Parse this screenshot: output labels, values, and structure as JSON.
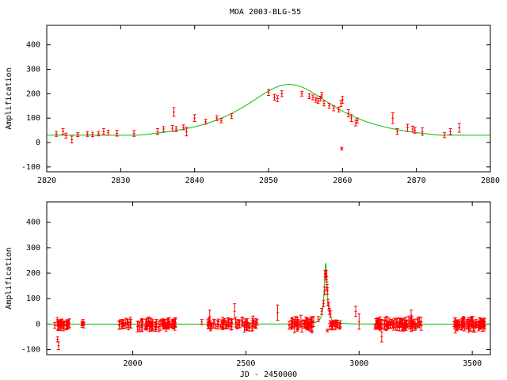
{
  "title": "MOA 2003-BLG-55",
  "chart_data": [
    {
      "type": "scatter",
      "ylabel": "Amplification",
      "xlabel": "",
      "xlim": [
        2820,
        2880
      ],
      "ylim": [
        -120,
        480
      ],
      "xticks": [
        2820,
        2830,
        2840,
        2850,
        2860,
        2870,
        2880
      ],
      "yticks": [
        -100,
        0,
        100,
        200,
        300,
        400
      ],
      "colors": {
        "data": "#ff0000",
        "model": "#00c000"
      },
      "model": {
        "t0": 2852.8,
        "baseline": 0,
        "peak": 238,
        "tE": 7.8,
        "floor": 30
      },
      "points": [
        [
          2821.3,
          35,
          10
        ],
        [
          2822.2,
          45,
          12
        ],
        [
          2822.6,
          28,
          10
        ],
        [
          2823.4,
          12,
          14
        ],
        [
          2824.2,
          32,
          8
        ],
        [
          2825.5,
          35,
          10
        ],
        [
          2826.2,
          33,
          9
        ],
        [
          2827.0,
          36,
          9
        ],
        [
          2827.7,
          45,
          12
        ],
        [
          2828.3,
          40,
          10
        ],
        [
          2829.5,
          38,
          12
        ],
        [
          2831.8,
          37,
          12
        ],
        [
          2835.0,
          45,
          12
        ],
        [
          2835.8,
          55,
          10
        ],
        [
          2837.0,
          58,
          12
        ],
        [
          2837.2,
          125,
          18
        ],
        [
          2837.5,
          55,
          10
        ],
        [
          2838.5,
          62,
          10
        ],
        [
          2838.9,
          45,
          18
        ],
        [
          2840.0,
          100,
          14
        ],
        [
          2841.5,
          85,
          10
        ],
        [
          2843.0,
          100,
          10
        ],
        [
          2843.6,
          90,
          9
        ],
        [
          2845.0,
          108,
          10
        ],
        [
          2850.0,
          205,
          12
        ],
        [
          2850.8,
          185,
          12
        ],
        [
          2851.2,
          180,
          12
        ],
        [
          2851.8,
          200,
          12
        ],
        [
          2854.5,
          200,
          10
        ],
        [
          2855.5,
          190,
          10
        ],
        [
          2856.0,
          185,
          10
        ],
        [
          2856.4,
          175,
          10
        ],
        [
          2856.7,
          170,
          10
        ],
        [
          2857.0,
          180,
          10
        ],
        [
          2857.2,
          195,
          10
        ],
        [
          2857.5,
          160,
          10
        ],
        [
          2858.2,
          150,
          10
        ],
        [
          2858.8,
          140,
          10
        ],
        [
          2859.5,
          135,
          10
        ],
        [
          2859.8,
          160,
          12
        ],
        [
          2860.0,
          175,
          14
        ],
        [
          2859.9,
          -25,
          5
        ],
        [
          2860.8,
          120,
          15
        ],
        [
          2861.2,
          100,
          14
        ],
        [
          2861.8,
          80,
          12
        ],
        [
          2862.0,
          90,
          10
        ],
        [
          2866.8,
          100,
          22
        ],
        [
          2867.4,
          45,
          12
        ],
        [
          2868.8,
          60,
          15
        ],
        [
          2869.5,
          55,
          12
        ],
        [
          2869.8,
          50,
          12
        ],
        [
          2870.8,
          45,
          15
        ],
        [
          2873.8,
          30,
          10
        ],
        [
          2874.6,
          45,
          12
        ],
        [
          2875.8,
          60,
          18
        ]
      ]
    },
    {
      "type": "scatter",
      "ylabel": "Amplification",
      "xlabel": "JD - 2450000",
      "xlim": [
        1620,
        3580
      ],
      "ylim": [
        -120,
        480
      ],
      "xticks": [
        2000,
        2500,
        3000,
        3500
      ],
      "yticks": [
        -100,
        0,
        100,
        200,
        300,
        400
      ],
      "colors": {
        "data": "#ff0000",
        "model": "#00c000"
      },
      "model": {
        "t0": 2852.8,
        "baseline": 0,
        "peak": 238,
        "tE": 7.8,
        "floor": 0
      },
      "seasons": [
        {
          "start": 1655,
          "end": 1720,
          "n": 26,
          "err": 14,
          "scatter": 12
        },
        {
          "start": 1760,
          "end": 1785,
          "n": 6,
          "err": 10,
          "scatter": 8
        },
        {
          "start": 1940,
          "end": 2000,
          "n": 16,
          "err": 14,
          "scatter": 10
        },
        {
          "start": 2020,
          "end": 2190,
          "n": 70,
          "err": 14,
          "scatter": 12
        },
        {
          "start": 2330,
          "end": 2550,
          "n": 70,
          "err": 14,
          "scatter": 12
        },
        {
          "start": 2690,
          "end": 2800,
          "n": 45,
          "err": 15,
          "scatter": 13
        },
        {
          "start": 2870,
          "end": 2920,
          "n": 22,
          "err": 12,
          "scatter": 10
        },
        {
          "start": 3070,
          "end": 3280,
          "n": 85,
          "err": 15,
          "scatter": 12
        },
        {
          "start": 3420,
          "end": 3560,
          "n": 70,
          "err": 15,
          "scatter": 12
        }
      ],
      "extra_points": [
        [
          1672,
          -85,
          15
        ],
        [
          1668,
          -60,
          10
        ],
        [
          2305,
          8,
          10
        ],
        [
          2340,
          30,
          25
        ],
        [
          2450,
          50,
          30
        ],
        [
          2640,
          45,
          30
        ],
        [
          3000,
          10,
          30
        ],
        [
          3100,
          -50,
          20
        ],
        [
          3425,
          -5,
          30
        ],
        [
          3230,
          35,
          20
        ],
        [
          2985,
          50,
          20
        ],
        [
          2820,
          20,
          10
        ],
        [
          2835,
          50,
          12
        ],
        [
          2843,
          80,
          12
        ],
        [
          2848,
          130,
          15
        ],
        [
          2850,
          200,
          12
        ],
        [
          2851,
          185,
          12
        ],
        [
          2852,
          195,
          12
        ],
        [
          2855,
          200,
          10
        ],
        [
          2857,
          175,
          10
        ],
        [
          2858,
          145,
          10
        ],
        [
          2860,
          130,
          12
        ],
        [
          2862,
          85,
          12
        ],
        [
          2866,
          70,
          15
        ],
        [
          2869,
          50,
          12
        ],
        [
          2874,
          40,
          12
        ],
        [
          2859.9,
          -25,
          5
        ]
      ]
    }
  ]
}
